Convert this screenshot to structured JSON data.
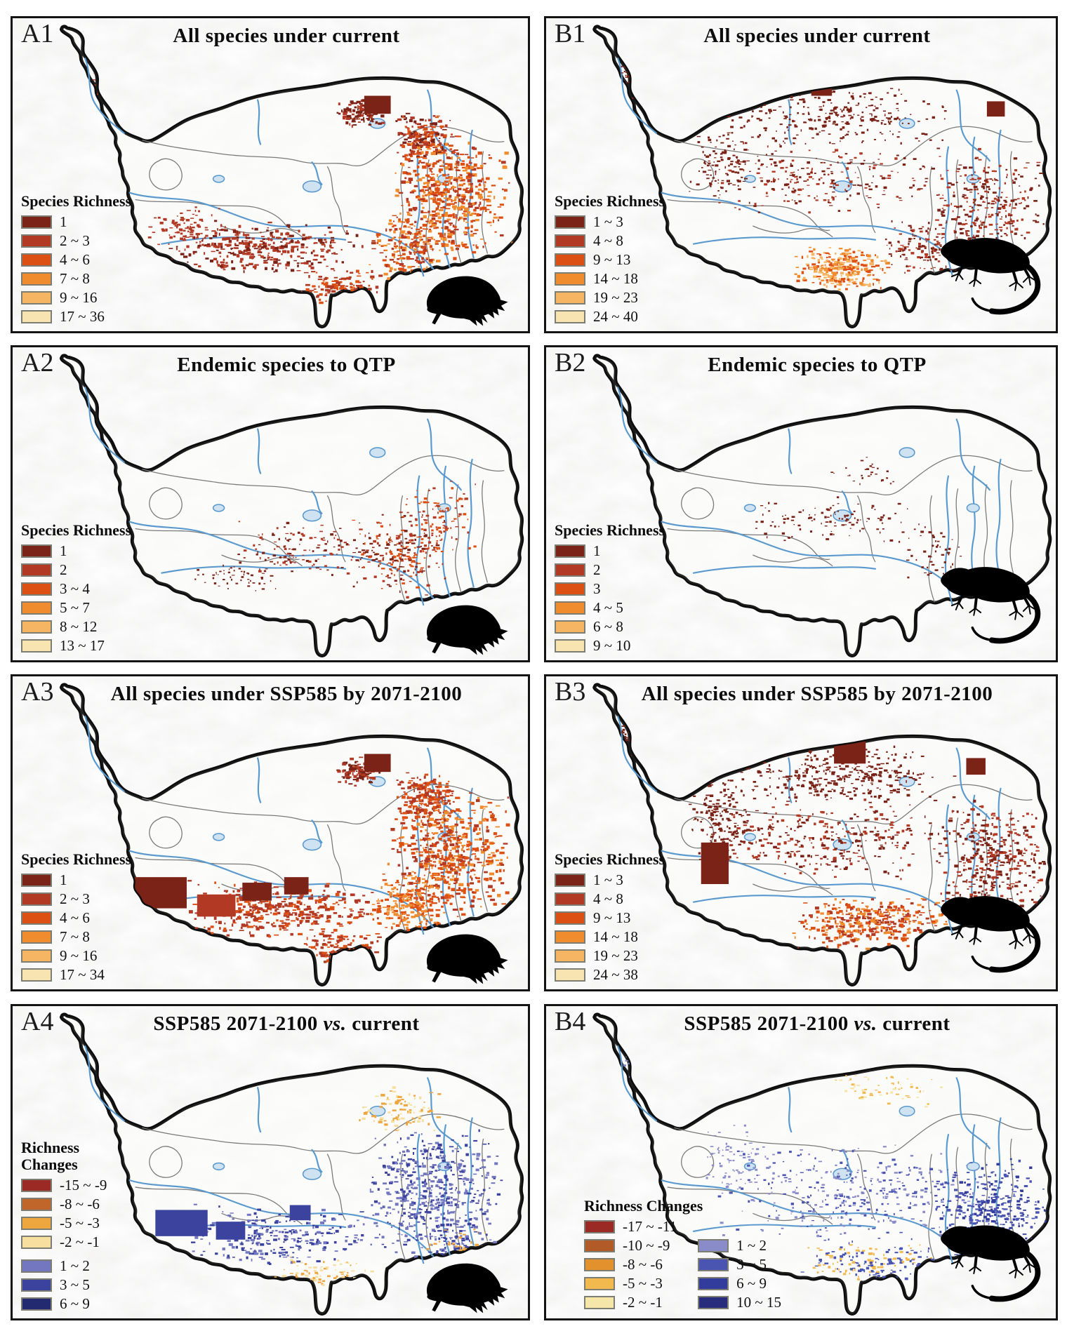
{
  "figure": {
    "background": "#ffffff"
  },
  "map_colors": {
    "outline": "#0c0c0c",
    "river": "#5b9ace",
    "lake_fill": "#cfe2f2",
    "interior_boundary": "#7a7a7a",
    "terrain_gray": "#d9d8d5",
    "plateau_fill": "#fdfdfc",
    "silhouette": "#000000"
  },
  "panels": [
    {
      "id": "A1",
      "title_parts": [
        "All species under current",
        "",
        ""
      ],
      "animal": "frog-silhouette",
      "legend": {
        "title": "Species Richness",
        "layout": "single",
        "items": [
          {
            "label": "1",
            "color": "#7b2317",
            "col": 1
          },
          {
            "label": "2 ~ 3",
            "color": "#b23a24",
            "col": 1
          },
          {
            "label": "4 ~ 6",
            "color": "#dd5014",
            "col": 1
          },
          {
            "label": "7 ~ 8",
            "color": "#f08c2e",
            "col": 1
          },
          {
            "label": "9 ~ 16",
            "color": "#f6b563",
            "col": 1
          },
          {
            "label": "17 ~ 36",
            "color": "#f8e4b0",
            "col": 1
          }
        ]
      }
    },
    {
      "id": "B1",
      "title_parts": [
        "All species under current",
        "",
        ""
      ],
      "animal": "lizard-silhouette",
      "legend": {
        "title": "Species Richness",
        "layout": "single",
        "items": [
          {
            "label": "1 ~ 3",
            "color": "#7b2317",
            "col": 1
          },
          {
            "label": "4 ~ 8",
            "color": "#b23a24",
            "col": 1
          },
          {
            "label": "9 ~ 13",
            "color": "#dd5014",
            "col": 1
          },
          {
            "label": "14 ~ 18",
            "color": "#f08c2e",
            "col": 1
          },
          {
            "label": "19 ~ 23",
            "color": "#f6b563",
            "col": 1
          },
          {
            "label": "24 ~ 40",
            "color": "#f8e4b0",
            "col": 1
          }
        ]
      }
    },
    {
      "id": "A2",
      "title_parts": [
        "Endemic species to QTP",
        "",
        ""
      ],
      "animal": "frog-silhouette",
      "legend": {
        "title": "Species Richness",
        "layout": "single",
        "items": [
          {
            "label": "1",
            "color": "#7b2317",
            "col": 1
          },
          {
            "label": "2",
            "color": "#b23a24",
            "col": 1
          },
          {
            "label": "3 ~ 4",
            "color": "#dd5014",
            "col": 1
          },
          {
            "label": "5 ~ 7",
            "color": "#f08c2e",
            "col": 1
          },
          {
            "label": "8 ~ 12",
            "color": "#f6b563",
            "col": 1
          },
          {
            "label": "13 ~ 17",
            "color": "#f8e4b0",
            "col": 1
          }
        ]
      }
    },
    {
      "id": "B2",
      "title_parts": [
        "Endemic species to QTP",
        "",
        ""
      ],
      "animal": "lizard-silhouette",
      "legend": {
        "title": "Species Richness",
        "layout": "single",
        "items": [
          {
            "label": "1",
            "color": "#7b2317",
            "col": 1
          },
          {
            "label": "2",
            "color": "#b23a24",
            "col": 1
          },
          {
            "label": "3",
            "color": "#dd5014",
            "col": 1
          },
          {
            "label": "4 ~ 5",
            "color": "#f08c2e",
            "col": 1
          },
          {
            "label": "6 ~ 8",
            "color": "#f6b563",
            "col": 1
          },
          {
            "label": "9 ~ 10",
            "color": "#f8e4b0",
            "col": 1
          }
        ]
      }
    },
    {
      "id": "A3",
      "title_parts": [
        "All species under SSP585 by 2071-2100",
        "",
        ""
      ],
      "animal": "frog-silhouette",
      "legend": {
        "title": "Species Richness",
        "layout": "single",
        "items": [
          {
            "label": "1",
            "color": "#7b2317",
            "col": 1
          },
          {
            "label": "2 ~ 3",
            "color": "#b23a24",
            "col": 1
          },
          {
            "label": "4 ~ 6",
            "color": "#dd5014",
            "col": 1
          },
          {
            "label": "7 ~ 8",
            "color": "#f08c2e",
            "col": 1
          },
          {
            "label": "9 ~ 16",
            "color": "#f6b563",
            "col": 1
          },
          {
            "label": "17 ~ 34",
            "color": "#f8e4b0",
            "col": 1
          }
        ]
      }
    },
    {
      "id": "B3",
      "title_parts": [
        "All species under SSP585 by 2071-2100",
        "",
        ""
      ],
      "animal": "lizard-silhouette",
      "legend": {
        "title": "Species Richness",
        "layout": "single",
        "items": [
          {
            "label": "1 ~ 3",
            "color": "#7b2317",
            "col": 1
          },
          {
            "label": "4 ~ 8",
            "color": "#b23a24",
            "col": 1
          },
          {
            "label": "9 ~ 13",
            "color": "#dd5014",
            "col": 1
          },
          {
            "label": "14 ~ 18",
            "color": "#f08c2e",
            "col": 1
          },
          {
            "label": "19 ~ 23",
            "color": "#f6b563",
            "col": 1
          },
          {
            "label": "24 ~ 38",
            "color": "#f8e4b0",
            "col": 1
          }
        ]
      }
    },
    {
      "id": "A4",
      "title_parts": [
        "SSP585 2071-2100 ",
        "vs.",
        " current"
      ],
      "animal": "frog-silhouette",
      "legend": {
        "title": "Richness\nChanges",
        "layout": "single",
        "items": [
          {
            "label": "-15 ~ -9",
            "color": "#9c2a24",
            "col": 1
          },
          {
            "label": "-8 ~ -6",
            "color": "#c1662a",
            "col": 1
          },
          {
            "label": "-5 ~ -3",
            "color": "#eea63e",
            "col": 1
          },
          {
            "label": "-2 ~ -1",
            "color": "#f6df9f",
            "col": 1
          },
          {
            "label": "1 ~ 2",
            "color": "#7277bf",
            "col": 1,
            "gap": true
          },
          {
            "label": "3 ~ 5",
            "color": "#3b439f",
            "col": 1
          },
          {
            "label": "6 ~ 9",
            "color": "#232a6f",
            "col": 1
          }
        ]
      }
    },
    {
      "id": "B4",
      "title_parts": [
        "SSP585 2071-2100 ",
        "vs.",
        " current"
      ],
      "animal": "lizard-silhouette",
      "legend": {
        "title": "Richness Changes",
        "layout": "two-col",
        "items": [
          {
            "label": "-17 ~ -11",
            "color": "#9c2a24",
            "col": 1
          },
          {
            "label": "-10 ~ -9",
            "color": "#b35b28",
            "col": 1
          },
          {
            "label": "-8 ~ -6",
            "color": "#e2912d",
            "col": 1
          },
          {
            "label": "-5 ~ -3",
            "color": "#f2b94e",
            "col": 1
          },
          {
            "label": "-2 ~ -1",
            "color": "#f7e6a9",
            "col": 1
          },
          {
            "label": "1 ~ 2",
            "color": "#8a8cca",
            "col": 2
          },
          {
            "label": "3 ~ 5",
            "color": "#4a55b2",
            "col": 2
          },
          {
            "label": "6 ~ 9",
            "color": "#323c9c",
            "col": 2
          },
          {
            "label": "10 ~ 15",
            "color": "#272c7c",
            "col": 2
          }
        ]
      }
    }
  ]
}
